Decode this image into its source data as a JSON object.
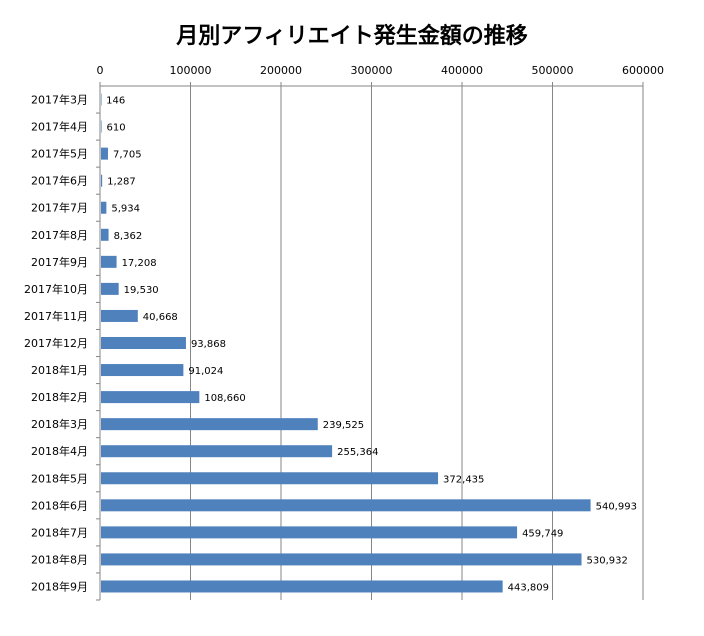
{
  "chart_data": {
    "type": "bar",
    "orientation": "horizontal",
    "title": "月別アフィリエイト発生金額の推移",
    "xlabel": "",
    "ylabel": "",
    "xlim": [
      0,
      600000
    ],
    "x_ticks": [
      "0",
      "100000",
      "200000",
      "300000",
      "400000",
      "500000",
      "600000"
    ],
    "x_tick_values": [
      0,
      100000,
      200000,
      300000,
      400000,
      500000,
      600000
    ],
    "x_axis_position": "top",
    "grid": true,
    "legend": "none",
    "bar_color": "#4f81bd",
    "categories": [
      "2017年3月",
      "2017年4月",
      "2017年5月",
      "2017年6月",
      "2017年7月",
      "2017年8月",
      "2017年9月",
      "2017年10月",
      "2017年11月",
      "2017年12月",
      "2018年1月",
      "2018年2月",
      "2018年3月",
      "2018年4月",
      "2018年5月",
      "2018年6月",
      "2018年7月",
      "2018年8月",
      "2018年9月"
    ],
    "values": [
      146,
      610,
      7705,
      1287,
      5934,
      8362,
      17208,
      19530,
      40668,
      93868,
      91024,
      108660,
      239525,
      255364,
      372435,
      540993,
      459749,
      530932,
      443809
    ],
    "data_labels": [
      "146",
      "610",
      "7,705",
      "1,287",
      "5,934",
      "8,362",
      "17,208",
      "19,530",
      "40,668",
      "93,868",
      "91,024",
      "108,660",
      "239,525",
      "255,364",
      "372,435",
      "540,993",
      "459,749",
      "530,932",
      "443,809"
    ]
  }
}
